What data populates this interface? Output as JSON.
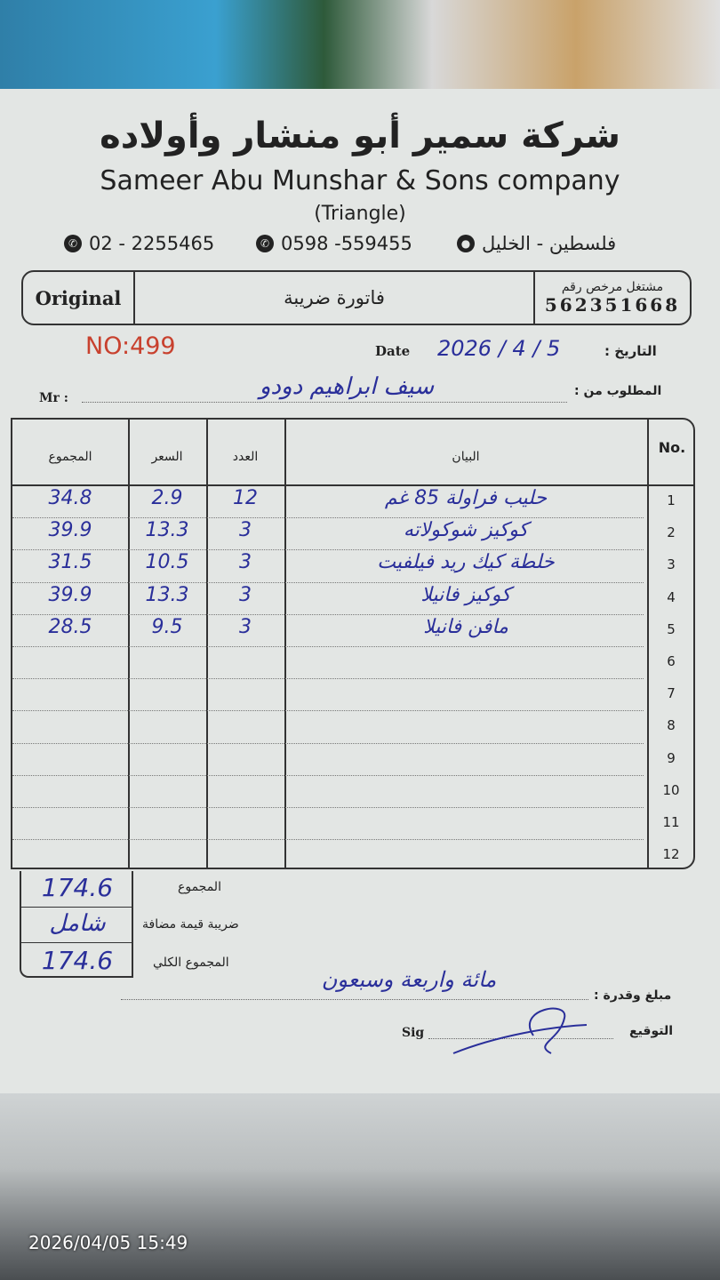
{
  "company": {
    "name_ar": "شركة سمير أبو منشار وأولاده",
    "name_en": "Sameer Abu Munshar & Sons company",
    "brand": "(Triangle)",
    "phone1": "02 - 2255465",
    "phone2": "0598 -559455",
    "location": "فلسطين - الخليل"
  },
  "header": {
    "copy": "Original",
    "doc_type": "فاتورة ضريبة",
    "license_label": "مشتغل مرخص رقم",
    "license_no": "562351668"
  },
  "invoice": {
    "number": "NO:499",
    "date_label_en": "Date",
    "date_value": "2026 / 4 / 5",
    "date_label_ar": "التاريخ :",
    "customer_label_en": "Mr :",
    "customer_label_ar": "المطلوب من :",
    "customer": "سيف ابراهيم دودو"
  },
  "table": {
    "headers": {
      "no": "No.",
      "description": "البيان",
      "qty": "العدد",
      "price": "السعر",
      "total": "المجموع"
    },
    "row_numbers": [
      "1",
      "2",
      "3",
      "4",
      "5",
      "6",
      "7",
      "8",
      "9",
      "10",
      "11",
      "12"
    ],
    "items": [
      {
        "description": "حليب فراولة 85 غم",
        "qty": "12",
        "price": "2.9",
        "total": "34.8"
      },
      {
        "description": "كوكيز شوكولاته",
        "qty": "3",
        "price": "13.3",
        "total": "39.9"
      },
      {
        "description": "خلطة كيك ريد فيلفيت",
        "qty": "3",
        "price": "10.5",
        "total": "31.5"
      },
      {
        "description": "كوكيز فانيلا",
        "qty": "3",
        "price": "13.3",
        "total": "39.9"
      },
      {
        "description": "مافن فانيلا",
        "qty": "3",
        "price": "9.5",
        "total": "28.5"
      }
    ]
  },
  "totals": {
    "subtotal_label": "المجموع",
    "subtotal": "174.6",
    "vat_label": "ضريبة قيمة مضافة",
    "vat": "شامل",
    "grand_label": "المجموع الكلي",
    "grand": "174.6"
  },
  "footer": {
    "amount_words_label": "مبلغ وقدرة :",
    "amount_words": "مائة واربعة وسبعون",
    "sig_label_en": "Sig",
    "sig_label_ar": "التوقيع"
  },
  "photo_timestamp": "2026/04/05 15:49",
  "colors": {
    "number_red": "#c8412e",
    "ink_blue": "#2a2f9a"
  }
}
